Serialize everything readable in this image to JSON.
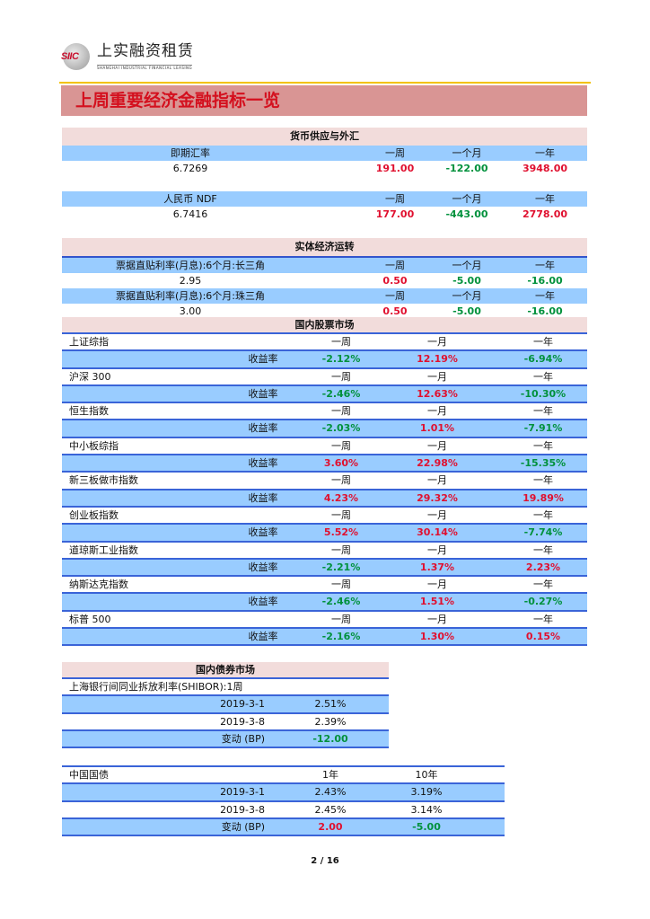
{
  "header": {
    "logo_mark": "SIIC",
    "logo_cn": "上实融资租赁",
    "logo_en": "SHANGHAI INDUSTRIAL FINANCIAL LEASING",
    "title": "上周重要经济金融指标一览"
  },
  "colors": {
    "up": "#e0102f",
    "down": "#00913c",
    "row_blue": "#99ccff",
    "section_pink": "#f2dcdb",
    "title_band": "#d99594"
  },
  "money_fx": {
    "section_title": "货币供应与外汇",
    "blocks": [
      {
        "label": "即期汇率",
        "headers": [
          "一周",
          "一个月",
          "一年"
        ],
        "value": "6.7269",
        "changes": [
          "191.00",
          "-122.00",
          "3948.00"
        ]
      },
      {
        "label": "人民币 NDF",
        "headers": [
          "一周",
          "一个月",
          "一年"
        ],
        "value": "6.7416",
        "changes": [
          "177.00",
          "-443.00",
          "2778.00"
        ]
      }
    ]
  },
  "real_economy": {
    "section_title": "实体经济运转",
    "blocks": [
      {
        "label": "票据直贴利率(月息):6个月:长三角",
        "headers": [
          "一周",
          "一个月",
          "一年"
        ],
        "value": "2.95",
        "changes": [
          "0.50",
          "-5.00",
          "-16.00"
        ]
      },
      {
        "label": "票据直贴利率(月息):6个月:珠三角",
        "headers": [
          "一周",
          "一个月",
          "一年"
        ],
        "value": "3.00",
        "changes": [
          "0.50",
          "-5.00",
          "-16.00"
        ]
      }
    ]
  },
  "stocks": {
    "section_title": "国内股票市场",
    "headers": [
      "一周",
      "一月",
      "一年"
    ],
    "return_label": "收益率",
    "items": [
      {
        "name": "上证综指",
        "returns": [
          "-2.12%",
          "12.19%",
          "-6.94%"
        ]
      },
      {
        "name": "沪深 300",
        "returns": [
          "-2.46%",
          "12.63%",
          "-10.30%"
        ]
      },
      {
        "name": "恒生指数",
        "returns": [
          "-2.03%",
          "1.01%",
          "-7.91%"
        ]
      },
      {
        "name": "中小板综指",
        "returns": [
          "3.60%",
          "22.98%",
          "-15.35%"
        ]
      },
      {
        "name": "新三板做市指数",
        "returns": [
          "4.23%",
          "29.32%",
          "19.89%"
        ]
      },
      {
        "name": "创业板指数",
        "returns": [
          "5.52%",
          "30.14%",
          "-7.74%"
        ]
      },
      {
        "name": "道琼斯工业指数",
        "returns": [
          "-2.21%",
          "1.37%",
          "2.23%"
        ]
      },
      {
        "name": "纳斯达克指数",
        "returns": [
          "-2.46%",
          "1.51%",
          "-0.27%"
        ]
      },
      {
        "name": "标普 500",
        "returns": [
          "-2.16%",
          "1.30%",
          "0.15%"
        ]
      }
    ]
  },
  "bonds": {
    "section_title": "国内债券市场",
    "shibor": {
      "label": "上海银行间同业拆放利率(SHIBOR):1周",
      "rows": [
        {
          "date": "2019-3-1",
          "value": "2.51%"
        },
        {
          "date": "2019-3-8",
          "value": "2.39%"
        }
      ],
      "change_label": "变动 (BP)",
      "change": "-12.00"
    },
    "treasury": {
      "label": "中国国债",
      "headers": [
        "1年",
        "10年"
      ],
      "rows": [
        {
          "date": "2019-3-1",
          "values": [
            "2.43%",
            "3.19%"
          ]
        },
        {
          "date": "2019-3-8",
          "values": [
            "2.45%",
            "3.14%"
          ]
        }
      ],
      "change_label": "变动 (BP)",
      "changes": [
        "2.00",
        "-5.00"
      ]
    }
  },
  "footer": {
    "page": "2 / 16"
  }
}
